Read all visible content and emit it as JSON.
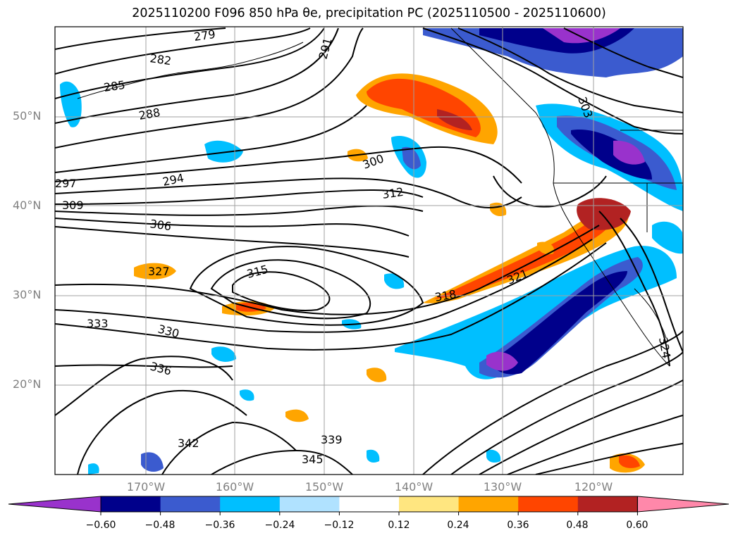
{
  "title": "2025110200 F096 850 hPa θe, precipitation PC (2025110500 - 2025110600)",
  "map": {
    "lat_labels": [
      {
        "label": "50°N",
        "lat": 50
      },
      {
        "label": "40°N",
        "lat": 40
      },
      {
        "label": "30°N",
        "lat": 30
      },
      {
        "label": "20°N",
        "lat": 20
      }
    ],
    "lon_labels": [
      {
        "label": "170°W",
        "lon": -170
      },
      {
        "label": "160°W",
        "lon": -160
      },
      {
        "label": "150°W",
        "lon": -150
      },
      {
        "label": "140°W",
        "lon": -140
      },
      {
        "label": "130°W",
        "lon": -130
      },
      {
        "label": "120°W",
        "lon": -120
      }
    ],
    "contour_labels": [
      "279",
      "282",
      "285",
      "288",
      "291",
      "294",
      "297",
      "300",
      "303",
      "306",
      "309",
      "312",
      "315",
      "318",
      "321",
      "324",
      "327",
      "330",
      "333",
      "336",
      "339",
      "342",
      "345"
    ]
  },
  "colorbar": {
    "ticks": [
      "−0.60",
      "−0.48",
      "−0.36",
      "−0.24",
      "−0.12",
      "0.12",
      "0.24",
      "0.36",
      "0.48",
      "0.60"
    ],
    "colors": [
      "#9932cc",
      "#00008b",
      "#3b5bcf",
      "#00bfff",
      "#b0e2ff",
      "#ffffff",
      "#ffe680",
      "#ffa500",
      "#ff4500",
      "#b22222",
      "#ff88aa"
    ]
  }
}
